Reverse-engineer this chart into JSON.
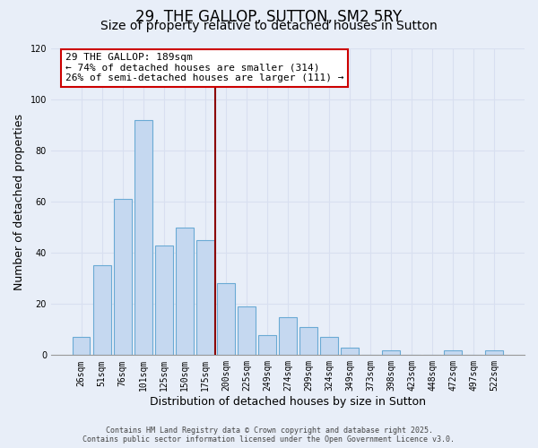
{
  "title": "29, THE GALLOP, SUTTON, SM2 5RY",
  "subtitle": "Size of property relative to detached houses in Sutton",
  "xlabel": "Distribution of detached houses by size in Sutton",
  "ylabel": "Number of detached properties",
  "categories": [
    "26sqm",
    "51sqm",
    "76sqm",
    "101sqm",
    "125sqm",
    "150sqm",
    "175sqm",
    "200sqm",
    "225sqm",
    "249sqm",
    "274sqm",
    "299sqm",
    "324sqm",
    "349sqm",
    "373sqm",
    "398sqm",
    "423sqm",
    "448sqm",
    "472sqm",
    "497sqm",
    "522sqm"
  ],
  "values": [
    7,
    35,
    61,
    92,
    43,
    50,
    45,
    28,
    19,
    8,
    15,
    11,
    7,
    3,
    0,
    2,
    0,
    0,
    2,
    0,
    2
  ],
  "bar_color": "#c5d8f0",
  "bar_edge_color": "#6aaad4",
  "highlight_index": 7,
  "highlight_line_color": "#8b0000",
  "ylim": [
    0,
    120
  ],
  "yticks": [
    0,
    20,
    40,
    60,
    80,
    100,
    120
  ],
  "annotation_title": "29 THE GALLOP: 189sqm",
  "annotation_line1": "← 74% of detached houses are smaller (314)",
  "annotation_line2": "26% of semi-detached houses are larger (111) →",
  "annotation_box_color": "#ffffff",
  "annotation_box_edge_color": "#cc0000",
  "background_color": "#e8eef8",
  "grid_color": "#d8dff0",
  "footer_line1": "Contains HM Land Registry data © Crown copyright and database right 2025.",
  "footer_line2": "Contains public sector information licensed under the Open Government Licence v3.0.",
  "title_fontsize": 12,
  "subtitle_fontsize": 10,
  "xlabel_fontsize": 9,
  "ylabel_fontsize": 9,
  "tick_fontsize": 7,
  "annotation_fontsize": 8,
  "footer_fontsize": 6
}
